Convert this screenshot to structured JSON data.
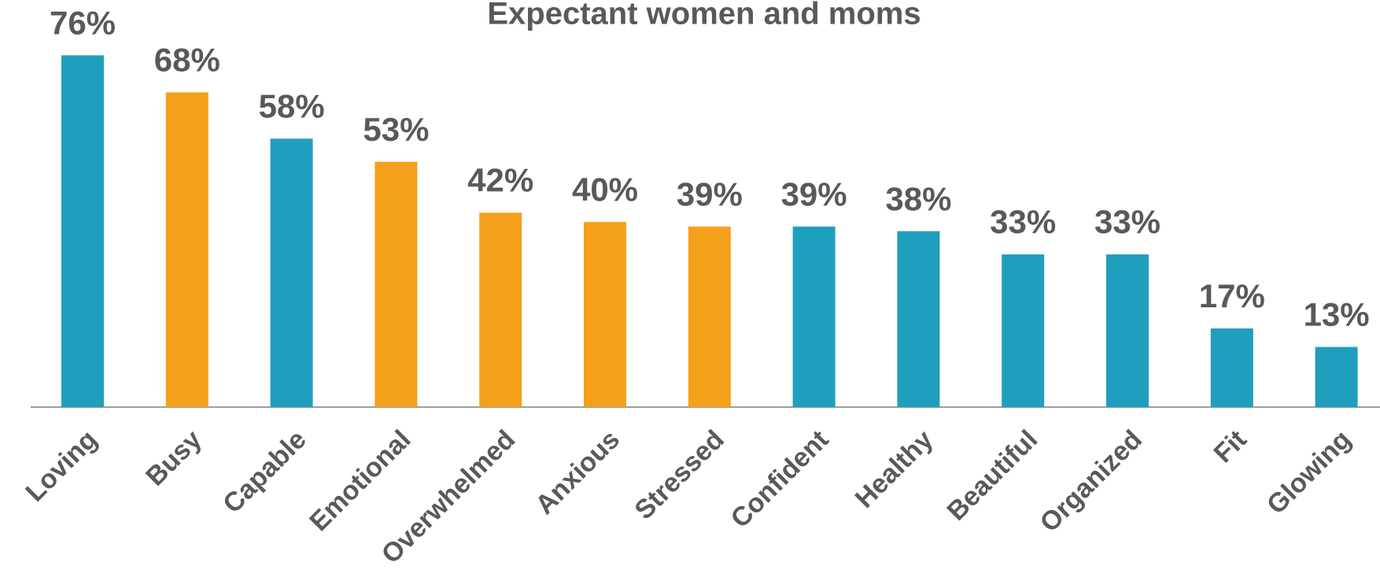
{
  "chart_data": {
    "type": "bar",
    "title": "Expectant women and moms",
    "categories": [
      "Loving",
      "Busy",
      "Capable",
      "Emotional",
      "Overwhelmed",
      "Anxious",
      "Stressed",
      "Confident",
      "Healthy",
      "Beautiful",
      "Organized",
      "Fit",
      "Glowing"
    ],
    "values": [
      76,
      68,
      58,
      53,
      42,
      40,
      39,
      39,
      38,
      33,
      33,
      17,
      13
    ],
    "value_labels": [
      "76%",
      "68%",
      "58%",
      "53%",
      "42%",
      "40%",
      "39%",
      "39%",
      "38%",
      "33%",
      "33%",
      "17%",
      "13%"
    ],
    "colors": [
      "#1f9fbd",
      "#f5a01a",
      "#1f9fbd",
      "#f5a01a",
      "#f5a01a",
      "#f5a01a",
      "#f5a01a",
      "#1f9fbd",
      "#1f9fbd",
      "#1f9fbd",
      "#1f9fbd",
      "#1f9fbd",
      "#1f9fbd"
    ]
  }
}
